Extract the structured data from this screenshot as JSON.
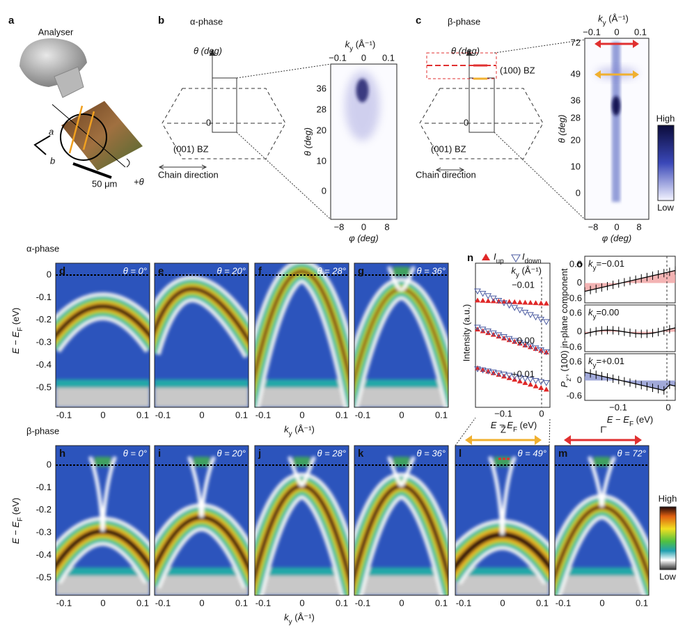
{
  "panel_a": {
    "label": "a",
    "title": "Analyser",
    "axis_a": "a",
    "axis_b": "b",
    "scale": "50 μm",
    "rotation": "+θ"
  },
  "panel_b": {
    "label": "b",
    "phase": "α-phase",
    "theta_axis": "θ (deg)",
    "zero": "0",
    "bz": "(001) BZ",
    "chain": "Chain direction",
    "ky_label": {
      "base": "k",
      "sub": "y",
      "unit": " (Å⁻¹)"
    },
    "ky_ticks": [
      "−0.1",
      "0",
      "0.1"
    ],
    "theta_ticks": [
      "36",
      "28",
      "20",
      "10",
      "0"
    ],
    "y_label": "θ (deg)",
    "phi_ticks": [
      "−8",
      "0",
      "8"
    ],
    "x_label": "φ (deg)"
  },
  "panel_c": {
    "label": "c",
    "phase": "β-phase",
    "theta_axis": "θ (deg)",
    "zero": "0",
    "bz": "(001) BZ",
    "bz100": "(100) BZ",
    "chain": "Chain direction",
    "ky_label": {
      "base": "k",
      "sub": "y",
      "unit": " (Å⁻¹)"
    },
    "ky_ticks": [
      "−0.1",
      "0",
      "0.1"
    ],
    "theta_ticks": [
      "72",
      "49",
      "36",
      "28",
      "20",
      "10",
      "0"
    ],
    "y_label": "θ (deg)",
    "phi_ticks": [
      "−8",
      "0",
      "8"
    ],
    "x_label": "φ (deg)",
    "high": "High",
    "low": "Low"
  },
  "alpha_row": {
    "label": "α-phase",
    "y_label": {
      "base": "E − E",
      "sub": "F",
      "unit": " (eV)"
    },
    "y_ticks": [
      "0",
      "-0.1",
      "-0.2",
      "-0.3",
      "-0.4",
      "-0.5"
    ],
    "x_label": {
      "base": "k",
      "sub": "y",
      "unit": " (Å⁻¹)"
    },
    "x_ticks": [
      "-0.1",
      "0",
      "0.1"
    ],
    "panels": [
      {
        "label": "d",
        "theta": "θ = 0°"
      },
      {
        "label": "e",
        "theta": "θ = 20°"
      },
      {
        "label": "f",
        "theta": "θ = 28°"
      },
      {
        "label": "g",
        "theta": "θ = 36°"
      }
    ]
  },
  "panel_n": {
    "label": "n",
    "up": {
      "base": "I",
      "sub": "up"
    },
    "down": {
      "base": "I",
      "sub": "down"
    },
    "ky_header": {
      "base": "k",
      "sub": "y",
      "unit": " (Å⁻¹)"
    },
    "curves": [
      "−0.01",
      "0.00",
      "+0.01"
    ],
    "y_label": "Intensity (a.u.)",
    "x_ticks": [
      "−0.1",
      "0"
    ],
    "x_label": {
      "base": "E − E",
      "sub": "F",
      "unit": " (eV)"
    }
  },
  "panel_o": {
    "label": "o",
    "curves": [
      {
        "base": "k",
        "sub": "y",
        "unit": "=−0.01"
      },
      {
        "base": "k",
        "sub": "y",
        "unit": "=0.00"
      },
      {
        "base": "k",
        "sub": "y",
        "unit": "=+0.01"
      }
    ],
    "y_ticks": [
      "0.6",
      "0",
      "-0.6"
    ],
    "y_label": {
      "base": "P",
      "sub": "z'",
      "unit": ", (100) in-plane component"
    },
    "x_ticks": [
      "−0.1",
      "0"
    ],
    "x_label": {
      "base": "E − E",
      "sub": "F",
      "unit": " (eV)"
    }
  },
  "beta_row": {
    "label": "β-phase",
    "y_label": {
      "base": "E − E",
      "sub": "F",
      "unit": " (eV)"
    },
    "y_ticks": [
      "0",
      "-0.1",
      "-0.2",
      "-0.3",
      "-0.4",
      "-0.5"
    ],
    "x_label": {
      "base": "k",
      "sub": "y",
      "unit": " (Å⁻¹)"
    },
    "x_ticks": [
      "-0.1",
      "0",
      "0.1"
    ],
    "z_label": "Z̄",
    "gamma_label": "Γ̄",
    "high": "High",
    "low": "Low",
    "panels": [
      {
        "label": "h",
        "theta": "θ = 0°"
      },
      {
        "label": "i",
        "theta": "θ = 20°"
      },
      {
        "label": "j",
        "theta": "θ = 28°"
      },
      {
        "label": "k",
        "theta": "θ = 36°"
      },
      {
        "label": "l",
        "theta": "θ = 49°"
      },
      {
        "label": "m",
        "theta": "θ = 72°"
      }
    ]
  }
}
